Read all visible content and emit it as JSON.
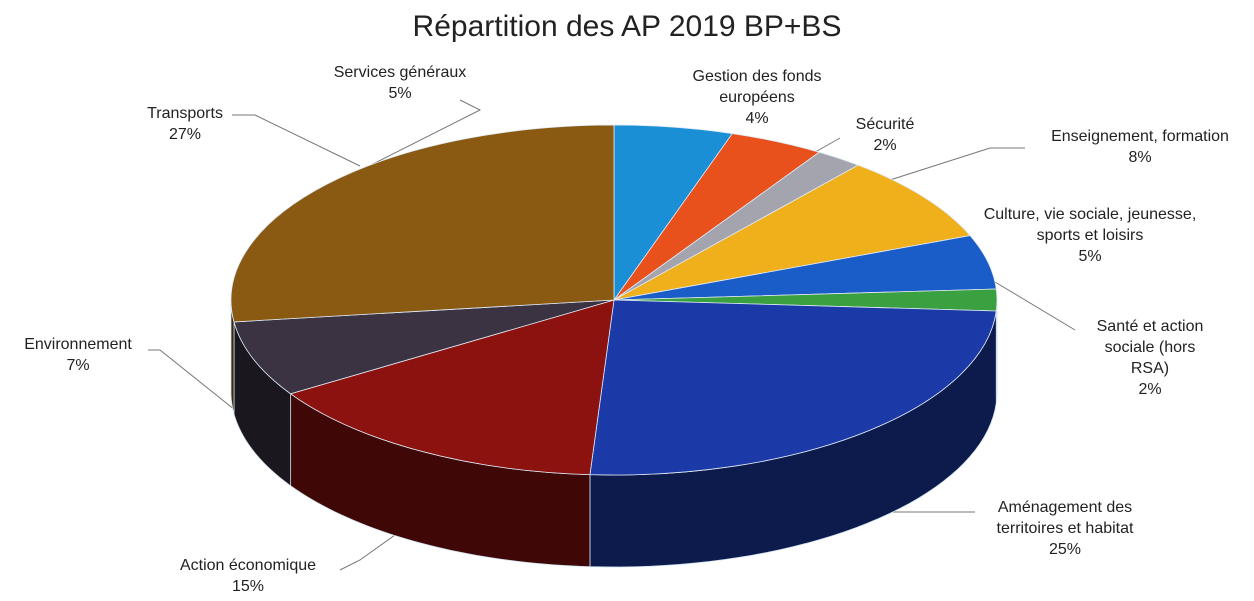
{
  "chart_data": {
    "type": "pie",
    "title": "Répartition des AP 2019 BP+BS",
    "categories": [
      "Services généraux",
      "Gestion des fonds européens",
      "Sécurité",
      "Enseignement, formation",
      "Culture, vie sociale, jeunesse, sports et loisirs",
      "Santé et action sociale (hors RSA)",
      "Aménagement des territoires et habitat",
      "Action économique",
      "Environnement",
      "Transports"
    ],
    "values": [
      5,
      4,
      2,
      8,
      5,
      2,
      25,
      15,
      7,
      27
    ],
    "value_labels": [
      "5%",
      "4%",
      "2%",
      "8%",
      "5%",
      "2%",
      "25%",
      "15%",
      "7%",
      "27%"
    ],
    "colors": [
      "#1b8fd6",
      "#e8501c",
      "#a4a4ae",
      "#f0b01c",
      "#1a5cc8",
      "#3aa040",
      "#1b3aa8",
      "#8c1210",
      "#3b3242",
      "#8a5a12"
    ]
  }
}
